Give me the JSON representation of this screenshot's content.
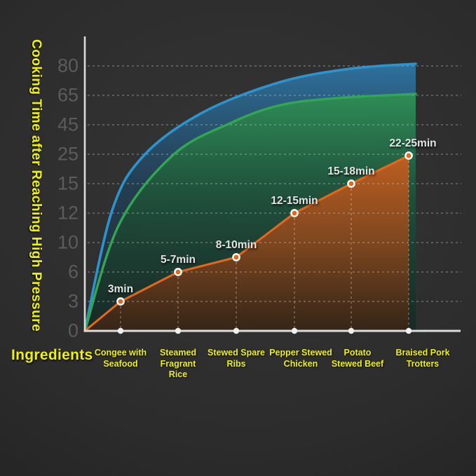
{
  "accent_color": "#eef013",
  "chart_data": {
    "type": "line",
    "title": "",
    "ylabel": "Cooking Time after Reaching High Pressure",
    "xlabel": "Ingredients",
    "y_ticks": [
      0,
      3,
      6,
      10,
      12,
      15,
      25,
      45,
      65,
      80
    ],
    "grid": "dashed-horizontal",
    "legend_position": "none",
    "categories": [
      "Congee with Seafood",
      "Steamed Fragrant Rice",
      "Stewed Spare Ribs",
      "Pepper Stewed Chicken",
      "Potato Stewed Beef",
      "Braised Pork Trotters"
    ],
    "category_lines": [
      [
        "Congee with",
        "Seafood"
      ],
      [
        "Steamed",
        "Fragrant",
        "Rice"
      ],
      [
        "Stewed Spare",
        "Ribs"
      ],
      [
        "Pepper Stewed",
        "Chicken"
      ],
      [
        "Potato",
        "Stewed Beef"
      ],
      [
        "Braised Pork",
        "Trotters"
      ]
    ],
    "series": [
      {
        "name": "Cooking time after reaching high pressure (min)",
        "type": "line",
        "color": "#e0691f",
        "marker": "orange-dot-white-ring",
        "point_labels": [
          "3min",
          "5-7min",
          "8-10min",
          "12-15min",
          "15-18min",
          "22-25min"
        ],
        "values_min": [
          3,
          5,
          8,
          12,
          15,
          22
        ],
        "values_max": [
          3,
          7,
          10,
          15,
          18,
          25
        ],
        "values_plotted": [
          3,
          6,
          8,
          12,
          15,
          24.5
        ]
      },
      {
        "name": "reference-curve-blue",
        "type": "area",
        "color": "#2e93cd",
        "description": "unlabeled saturating curve approaching y = 80"
      },
      {
        "name": "reference-curve-green",
        "type": "area",
        "color": "#33a654",
        "description": "unlabeled saturating curve approaching y = 65"
      }
    ],
    "colors": {
      "axis": "#dcdcdc",
      "tick_text": "#5c5c5c",
      "category_text": "#eef013",
      "point_label_text": "#e4e4e4",
      "gridline": "rgba(210,210,210,0.45)"
    }
  }
}
